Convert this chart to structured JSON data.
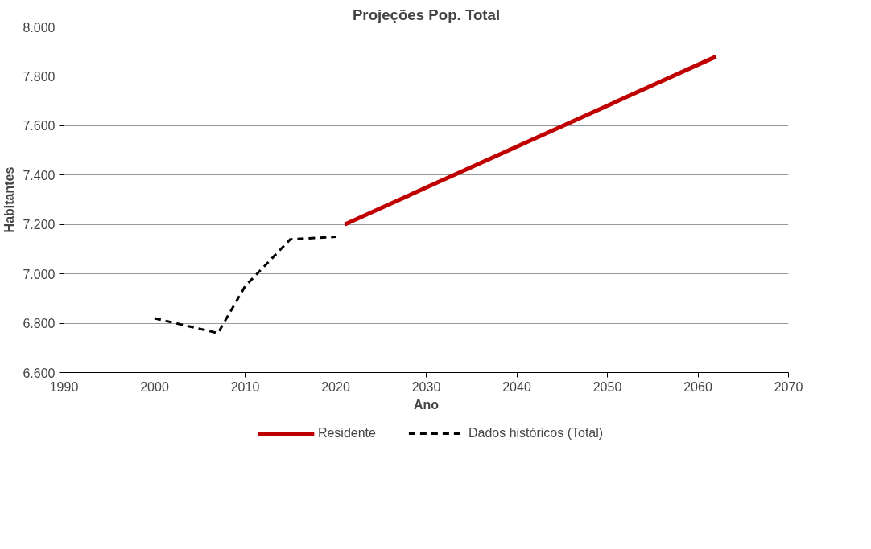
{
  "chart_data": {
    "type": "line",
    "title": "Projeções Pop. Total",
    "xlabel": "Ano",
    "ylabel": "Habitantes",
    "series": [
      {
        "name": "Residente",
        "color": "#c00000",
        "line_style": "solid",
        "x": [
          2021,
          2062
        ],
        "values": [
          7200,
          7880
        ]
      },
      {
        "name": "Dados históricos (Total)",
        "color": "#000000",
        "line_style": "dashed",
        "x": [
          2000,
          2007,
          2010,
          2015,
          2020
        ],
        "values": [
          6820,
          6760,
          6950,
          7140,
          7150
        ]
      }
    ],
    "xlim": [
      1990,
      2070
    ],
    "xticks": [
      1990,
      2000,
      2010,
      2020,
      2030,
      2040,
      2050,
      2060,
      2070
    ],
    "ylim": [
      6600,
      8000
    ],
    "yticks": [
      {
        "value": 6600,
        "label": "6.600"
      },
      {
        "value": 6800,
        "label": "6.800"
      },
      {
        "value": 7000,
        "label": "7.000"
      },
      {
        "value": 7200,
        "label": "7.200"
      },
      {
        "value": 7400,
        "label": "7.400"
      },
      {
        "value": 7600,
        "label": "7.600"
      },
      {
        "value": 7800,
        "label": "7.800"
      },
      {
        "value": 8000,
        "label": "8.000"
      }
    ],
    "grid": "y",
    "legend": "bottom",
    "marker": "none"
  }
}
